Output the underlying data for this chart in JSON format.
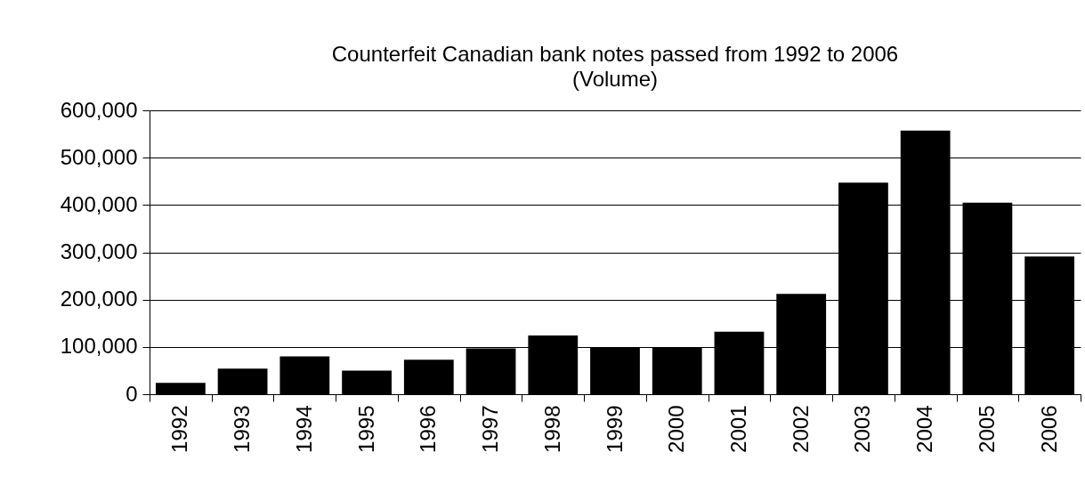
{
  "chart_data": {
    "type": "bar",
    "title": "Counterfeit Canadian bank notes passed from 1992 to 2006",
    "subtitle": "(Volume)",
    "categories": [
      "1992",
      "1993",
      "1994",
      "1995",
      "1996",
      "1997",
      "1998",
      "1999",
      "2000",
      "2001",
      "2002",
      "2003",
      "2004",
      "2005",
      "2006"
    ],
    "values": [
      24000,
      54000,
      80000,
      50000,
      73000,
      97000,
      124000,
      98000,
      98000,
      132000,
      212000,
      447000,
      557000,
      405000,
      291000
    ],
    "color": "#000000",
    "ylim": [
      0,
      600000
    ],
    "yticks": [
      0,
      {
        "value": 100000,
        "label": "100,000"
      },
      {
        "value": 200000,
        "label": "200,000"
      },
      {
        "value": 300000,
        "label": "300,000"
      },
      {
        "value": 400000,
        "label": "400,000"
      },
      {
        "value": 500000,
        "label": "500,000"
      },
      {
        "value": 600000,
        "label": "600,000"
      }
    ],
    "grid": "y"
  }
}
